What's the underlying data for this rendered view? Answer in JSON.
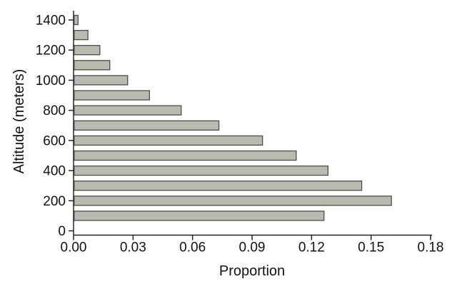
{
  "chart_data": {
    "type": "bar",
    "orientation": "horizontal",
    "title": "",
    "xlabel": "Proportion",
    "ylabel": "Altitude (meters)",
    "categories": [
      100,
      200,
      300,
      400,
      500,
      600,
      700,
      800,
      900,
      1000,
      1100,
      1200,
      1300,
      1400
    ],
    "values": [
      0.126,
      0.16,
      0.145,
      0.128,
      0.112,
      0.095,
      0.073,
      0.054,
      0.038,
      0.027,
      0.018,
      0.013,
      0.007,
      0.002
    ],
    "x_tick_labels": [
      "0.00",
      "0.03",
      "0.06",
      "0.09",
      "0.12",
      "0.15",
      "0.18"
    ],
    "x_tick_values": [
      0,
      0.03,
      0.06,
      0.09,
      0.12,
      0.15,
      0.18
    ],
    "y_tick_labels": [
      "0",
      "200",
      "400",
      "600",
      "800",
      "1000",
      "1200",
      "1400"
    ],
    "y_tick_values": [
      0,
      200,
      400,
      600,
      800,
      1000,
      1200,
      1400
    ],
    "xlim": [
      0,
      0.18
    ],
    "ylim": [
      0,
      1460
    ],
    "grid": false,
    "legend": "none",
    "bar_color": "#b8bcae",
    "bar_border_color": "#4d4d4d",
    "axis_color": "#262626",
    "text_color": "#111111",
    "background": "#ffffff"
  }
}
